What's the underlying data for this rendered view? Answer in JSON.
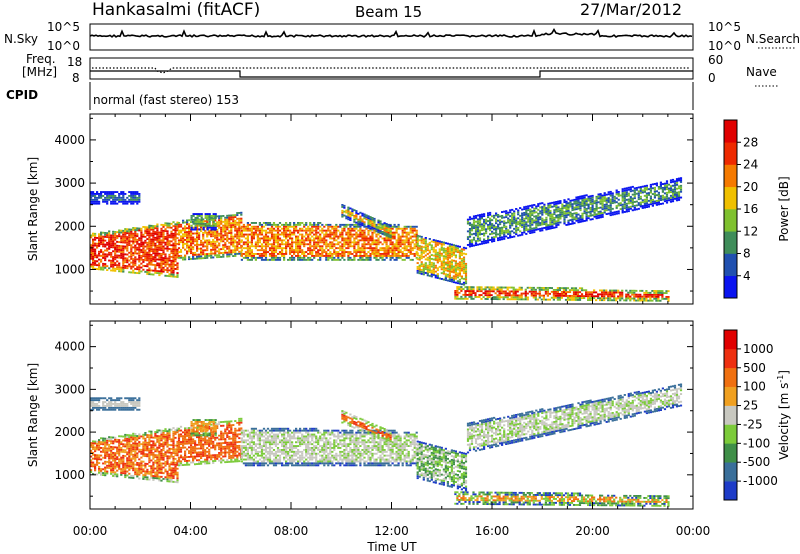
{
  "header": {
    "station": "Hankasalmi (fitACF)",
    "beam": "Beam 15",
    "date": "27/Mar/2012"
  },
  "top_panels": {
    "nsky_label": "N.Sky",
    "nsky_ticks": [
      "10^5",
      "10^0"
    ],
    "nsearch_label": "N.Search",
    "nsearch_ticks": [
      "10^5",
      "10^0"
    ],
    "freq_label_1": "Freq.",
    "freq_label_2": "[MHz]",
    "freq_ticks": [
      "18",
      "8"
    ],
    "nave_label": "Nave",
    "nave_ticks": [
      "60",
      "0"
    ],
    "cpid_label": "CPID",
    "cpid_text": "normal (fast stereo) 153"
  },
  "chart_data": [
    {
      "type": "heatmap",
      "name": "power",
      "ylabel": "Slant Range [km]",
      "yticks": [
        "1000",
        "2000",
        "3000",
        "4000"
      ],
      "ylim": [
        200,
        4600
      ],
      "colorbar_label": "Power [dB]",
      "colorbar_ticks": [
        "4",
        "8",
        "12",
        "16",
        "20",
        "24",
        "28"
      ],
      "colorbar_colors": [
        "#0a14f0",
        "#2050b0",
        "#3f8d5a",
        "#7fc12f",
        "#f0c000",
        "#f57a00",
        "#ee2a00",
        "#e00000"
      ],
      "xlim_hours": [
        0,
        24
      ]
    },
    {
      "type": "heatmap",
      "name": "velocity",
      "ylabel": "Slant Range [km]",
      "yticks": [
        "1000",
        "2000",
        "3000",
        "4000"
      ],
      "ylim": [
        200,
        4600
      ],
      "colorbar_label": "Velocity",
      "colorbar_unit": "[m s",
      "colorbar_unit_sup": "-1",
      "colorbar_unit_end": "]",
      "colorbar_ticks": [
        "1000",
        "500",
        "100",
        "25",
        "-25",
        "-100",
        "-500",
        "-1000"
      ],
      "colorbar_colors": [
        "#1e3cc8",
        "#3a6f9a",
        "#3f8f48",
        "#7ccb3a",
        "#c8c8c0",
        "#f0a020",
        "#f07010",
        "#ee3010",
        "#e00000"
      ],
      "xlim_hours": [
        0,
        24
      ]
    }
  ],
  "xaxis": {
    "label": "Time UT",
    "ticks": [
      "00:00",
      "04:00",
      "08:00",
      "12:00",
      "16:00",
      "20:00",
      "00:00"
    ]
  }
}
